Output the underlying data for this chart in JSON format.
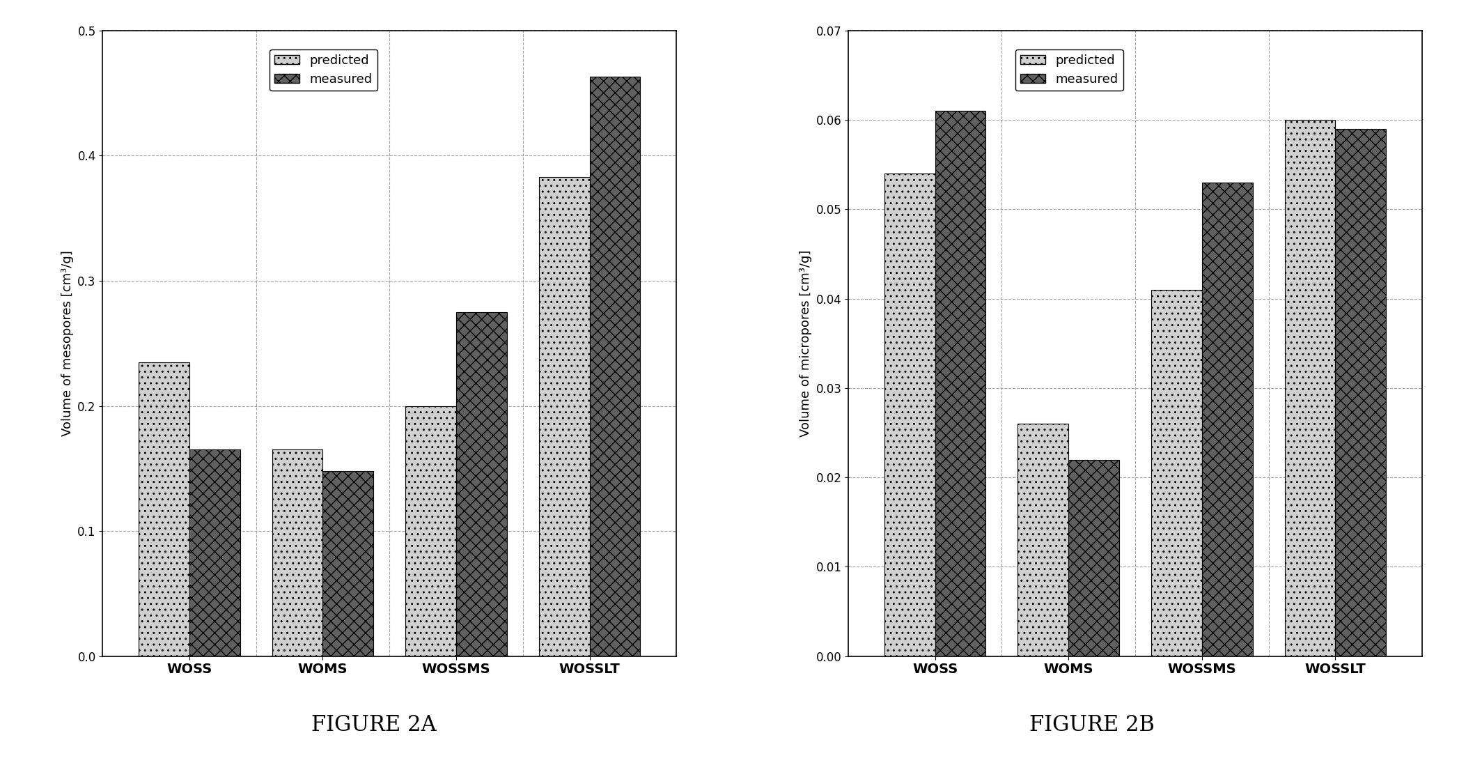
{
  "fig2a": {
    "categories": [
      "WOSS",
      "WOMS",
      "WOSSMS",
      "WOSSLT"
    ],
    "predicted": [
      0.235,
      0.165,
      0.2,
      0.383
    ],
    "measured": [
      0.165,
      0.148,
      0.275,
      0.463
    ],
    "ylabel": "Volume of mesopores [cm³/g]",
    "ylim": [
      0,
      0.5
    ],
    "yticks": [
      0,
      0.1,
      0.2,
      0.3,
      0.4,
      0.5
    ],
    "caption": "FIGURE 2A"
  },
  "fig2b": {
    "categories": [
      "WOSS",
      "WOMS",
      "WOSSMS",
      "WOSSLT"
    ],
    "predicted": [
      0.054,
      0.026,
      0.041,
      0.06
    ],
    "measured": [
      0.061,
      0.022,
      0.053,
      0.059
    ],
    "ylabel": "Volume of micropores [cm³/g]",
    "ylim": [
      0,
      0.07
    ],
    "yticks": [
      0,
      0.01,
      0.02,
      0.03,
      0.04,
      0.05,
      0.06,
      0.07
    ],
    "caption": "FIGURE 2B"
  },
  "predicted_color": "#d0d0d0",
  "measured_color": "#606060",
  "predicted_hatch": "..",
  "measured_hatch": "xx",
  "background_color": "#ffffff",
  "legend_labels": [
    "predicted",
    "measured"
  ],
  "bar_width": 0.38,
  "grid_color": "#999999",
  "caption_fontsize": 22
}
